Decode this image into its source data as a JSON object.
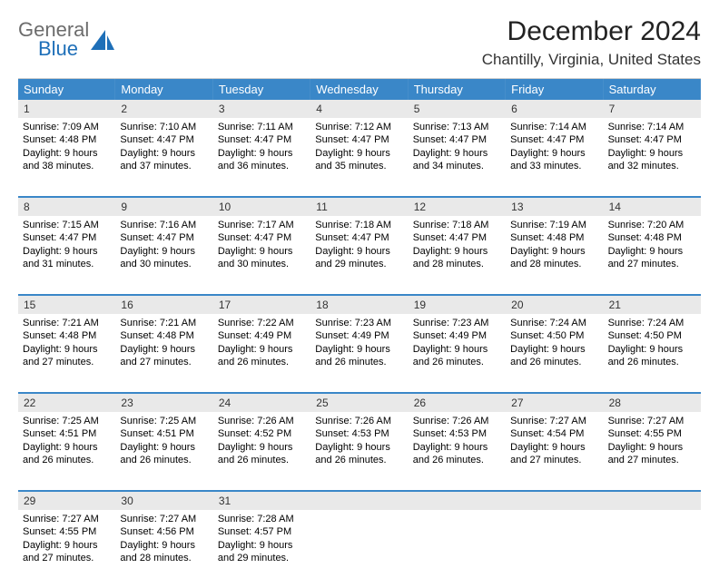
{
  "logo": {
    "general": "General",
    "blue": "Blue"
  },
  "title": "December 2024",
  "location": "Chantilly, Virginia, United States",
  "colors": {
    "header_bg": "#3a87c8",
    "header_text": "#ffffff",
    "daynum_bg": "#e9e9e9",
    "accent": "#1e6fb8",
    "row_border": "#3a87c8"
  },
  "fonts": {
    "title_size": 30,
    "location_size": 17,
    "dayhead_size": 13,
    "body_size": 11
  },
  "day_headers": [
    "Sunday",
    "Monday",
    "Tuesday",
    "Wednesday",
    "Thursday",
    "Friday",
    "Saturday"
  ],
  "weeks": [
    [
      {
        "n": "1",
        "sr": "7:09 AM",
        "ss": "4:48 PM",
        "dl": "9 hours and 38 minutes."
      },
      {
        "n": "2",
        "sr": "7:10 AM",
        "ss": "4:47 PM",
        "dl": "9 hours and 37 minutes."
      },
      {
        "n": "3",
        "sr": "7:11 AM",
        "ss": "4:47 PM",
        "dl": "9 hours and 36 minutes."
      },
      {
        "n": "4",
        "sr": "7:12 AM",
        "ss": "4:47 PM",
        "dl": "9 hours and 35 minutes."
      },
      {
        "n": "5",
        "sr": "7:13 AM",
        "ss": "4:47 PM",
        "dl": "9 hours and 34 minutes."
      },
      {
        "n": "6",
        "sr": "7:14 AM",
        "ss": "4:47 PM",
        "dl": "9 hours and 33 minutes."
      },
      {
        "n": "7",
        "sr": "7:14 AM",
        "ss": "4:47 PM",
        "dl": "9 hours and 32 minutes."
      }
    ],
    [
      {
        "n": "8",
        "sr": "7:15 AM",
        "ss": "4:47 PM",
        "dl": "9 hours and 31 minutes."
      },
      {
        "n": "9",
        "sr": "7:16 AM",
        "ss": "4:47 PM",
        "dl": "9 hours and 30 minutes."
      },
      {
        "n": "10",
        "sr": "7:17 AM",
        "ss": "4:47 PM",
        "dl": "9 hours and 30 minutes."
      },
      {
        "n": "11",
        "sr": "7:18 AM",
        "ss": "4:47 PM",
        "dl": "9 hours and 29 minutes."
      },
      {
        "n": "12",
        "sr": "7:18 AM",
        "ss": "4:47 PM",
        "dl": "9 hours and 28 minutes."
      },
      {
        "n": "13",
        "sr": "7:19 AM",
        "ss": "4:48 PM",
        "dl": "9 hours and 28 minutes."
      },
      {
        "n": "14",
        "sr": "7:20 AM",
        "ss": "4:48 PM",
        "dl": "9 hours and 27 minutes."
      }
    ],
    [
      {
        "n": "15",
        "sr": "7:21 AM",
        "ss": "4:48 PM",
        "dl": "9 hours and 27 minutes."
      },
      {
        "n": "16",
        "sr": "7:21 AM",
        "ss": "4:48 PM",
        "dl": "9 hours and 27 minutes."
      },
      {
        "n": "17",
        "sr": "7:22 AM",
        "ss": "4:49 PM",
        "dl": "9 hours and 26 minutes."
      },
      {
        "n": "18",
        "sr": "7:23 AM",
        "ss": "4:49 PM",
        "dl": "9 hours and 26 minutes."
      },
      {
        "n": "19",
        "sr": "7:23 AM",
        "ss": "4:49 PM",
        "dl": "9 hours and 26 minutes."
      },
      {
        "n": "20",
        "sr": "7:24 AM",
        "ss": "4:50 PM",
        "dl": "9 hours and 26 minutes."
      },
      {
        "n": "21",
        "sr": "7:24 AM",
        "ss": "4:50 PM",
        "dl": "9 hours and 26 minutes."
      }
    ],
    [
      {
        "n": "22",
        "sr": "7:25 AM",
        "ss": "4:51 PM",
        "dl": "9 hours and 26 minutes."
      },
      {
        "n": "23",
        "sr": "7:25 AM",
        "ss": "4:51 PM",
        "dl": "9 hours and 26 minutes."
      },
      {
        "n": "24",
        "sr": "7:26 AM",
        "ss": "4:52 PM",
        "dl": "9 hours and 26 minutes."
      },
      {
        "n": "25",
        "sr": "7:26 AM",
        "ss": "4:53 PM",
        "dl": "9 hours and 26 minutes."
      },
      {
        "n": "26",
        "sr": "7:26 AM",
        "ss": "4:53 PM",
        "dl": "9 hours and 26 minutes."
      },
      {
        "n": "27",
        "sr": "7:27 AM",
        "ss": "4:54 PM",
        "dl": "9 hours and 27 minutes."
      },
      {
        "n": "28",
        "sr": "7:27 AM",
        "ss": "4:55 PM",
        "dl": "9 hours and 27 minutes."
      }
    ],
    [
      {
        "n": "29",
        "sr": "7:27 AM",
        "ss": "4:55 PM",
        "dl": "9 hours and 27 minutes."
      },
      {
        "n": "30",
        "sr": "7:27 AM",
        "ss": "4:56 PM",
        "dl": "9 hours and 28 minutes."
      },
      {
        "n": "31",
        "sr": "7:28 AM",
        "ss": "4:57 PM",
        "dl": "9 hours and 29 minutes."
      },
      null,
      null,
      null,
      null
    ]
  ],
  "labels": {
    "sunrise": "Sunrise: ",
    "sunset": "Sunset: ",
    "daylight": "Daylight: "
  }
}
